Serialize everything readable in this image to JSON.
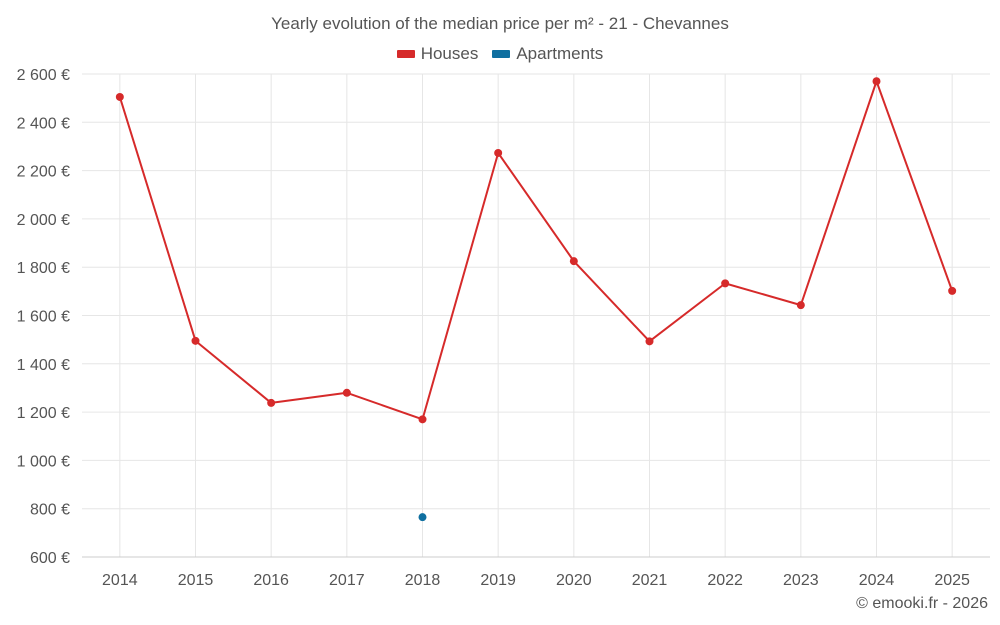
{
  "chart_data": {
    "type": "line",
    "title": "Yearly evolution of the median price per m² - 21 - Chevannes",
    "categories": [
      "2014",
      "2015",
      "2016",
      "2017",
      "2018",
      "2019",
      "2020",
      "2021",
      "2022",
      "2023",
      "2024",
      "2025"
    ],
    "series": [
      {
        "name": "Houses",
        "color": "#d62a2a",
        "values": [
          2505,
          1495,
          1238,
          1280,
          1170,
          2273,
          1825,
          1493,
          1733,
          1643,
          2570,
          1702
        ]
      },
      {
        "name": "Apartments",
        "color": "#0f6fa0",
        "values": [
          null,
          null,
          null,
          null,
          765,
          null,
          null,
          null,
          null,
          null,
          null,
          null
        ]
      }
    ],
    "ylim": [
      600,
      2600
    ],
    "yticks": [
      600,
      800,
      1000,
      1200,
      1400,
      1600,
      1800,
      2000,
      2200,
      2400,
      2600
    ],
    "ytick_labels": [
      "600 €",
      "800 €",
      "1 000 €",
      "1 200 €",
      "1 400 €",
      "1 600 €",
      "1 800 €",
      "2 000 €",
      "2 200 €",
      "2 400 €",
      "2 600 €"
    ],
    "xlabel": "",
    "ylabel": "",
    "grid": true,
    "legend_position": "top-center"
  },
  "footer": {
    "copyright": "© emooki.fr - 2026"
  }
}
